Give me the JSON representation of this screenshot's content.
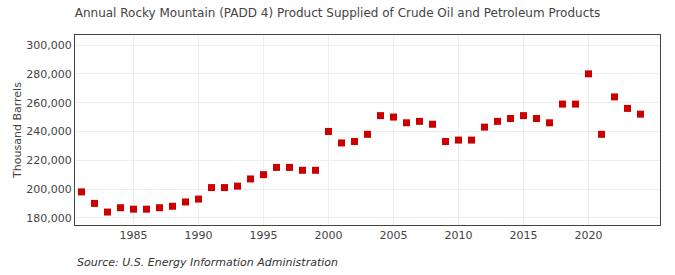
{
  "chart_data": {
    "type": "scatter",
    "title": "Annual Rocky Mountain (PADD 4) Product Supplied of Crude Oil and Petroleum Products",
    "ylabel": "Thousand Barrels",
    "annotations": [
      "Source: U.S. Energy Information Administration"
    ],
    "color": "#cc0000",
    "marker": "square",
    "grid": true,
    "x": [
      1981,
      1982,
      1983,
      1984,
      1985,
      1986,
      1987,
      1988,
      1989,
      1990,
      1991,
      1992,
      1993,
      1994,
      1995,
      1996,
      1997,
      1998,
      1999,
      2000,
      2001,
      2002,
      2003,
      2004,
      2005,
      2006,
      2007,
      2008,
      2009,
      2010,
      2011,
      2012,
      2013,
      2014,
      2015,
      2016,
      2017,
      2018,
      2019,
      2020,
      2021,
      2022,
      2023,
      2024
    ],
    "values": [
      198000,
      190000,
      184000,
      187000,
      186000,
      186000,
      187000,
      188000,
      191000,
      193000,
      201000,
      201000,
      202000,
      207000,
      210000,
      215000,
      215000,
      213000,
      213000,
      240000,
      232000,
      233000,
      238000,
      251000,
      250000,
      246000,
      247000,
      245000,
      233000,
      234000,
      234000,
      243000,
      247000,
      249000,
      251000,
      249000,
      246000,
      259000,
      259000,
      280000,
      238000,
      264000,
      256000,
      252000
    ],
    "xlim": [
      1980.5,
      2025.5
    ],
    "xticks": [
      1985,
      1990,
      1995,
      2000,
      2005,
      2010,
      2015,
      2020
    ],
    "ylim": [
      175000,
      307000
    ],
    "yticks": [
      {
        "value": 180000,
        "label": "180,000"
      },
      {
        "value": 200000,
        "label": "200,000"
      },
      {
        "value": 220000,
        "label": "220,000"
      },
      {
        "value": 240000,
        "label": "240,000"
      },
      {
        "value": 260000,
        "label": "260,000"
      },
      {
        "value": 280000,
        "label": "280,000"
      },
      {
        "value": 300000,
        "label": "300,000"
      }
    ]
  }
}
